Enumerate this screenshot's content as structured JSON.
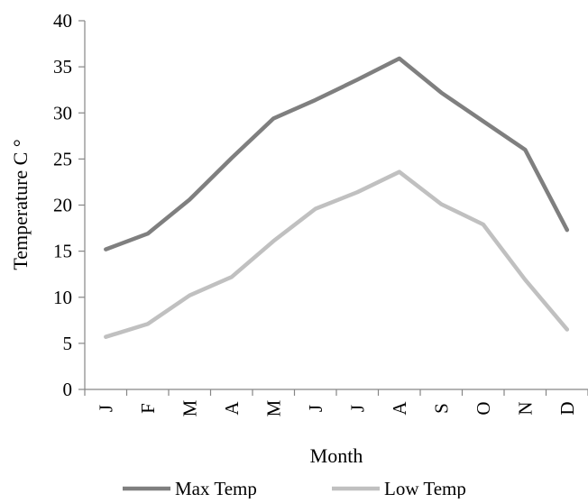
{
  "chart_data": {
    "type": "line",
    "title": "",
    "xlabel": "Month",
    "ylabel": "Temperature C °",
    "categories": [
      "J",
      "F",
      "M",
      "A",
      "M",
      "J",
      "J",
      "A",
      "S",
      "O",
      "N",
      "D"
    ],
    "ylim": [
      0,
      40
    ],
    "yticks": [
      0,
      5,
      10,
      15,
      20,
      25,
      30,
      35,
      40
    ],
    "grid": false,
    "legend_position": "bottom",
    "series": [
      {
        "name": "Max Temp",
        "color": "#7f7f7f",
        "values": [
          15.2,
          16.9,
          20.6,
          25.1,
          29.4,
          31.4,
          33.6,
          35.9,
          32.2,
          29.1,
          26.0,
          17.3
        ]
      },
      {
        "name": "Low Temp",
        "color": "#c0c0c0",
        "values": [
          5.7,
          7.1,
          10.2,
          12.2,
          16.1,
          19.6,
          21.4,
          23.6,
          20.1,
          17.9,
          11.9,
          6.5
        ]
      }
    ]
  }
}
